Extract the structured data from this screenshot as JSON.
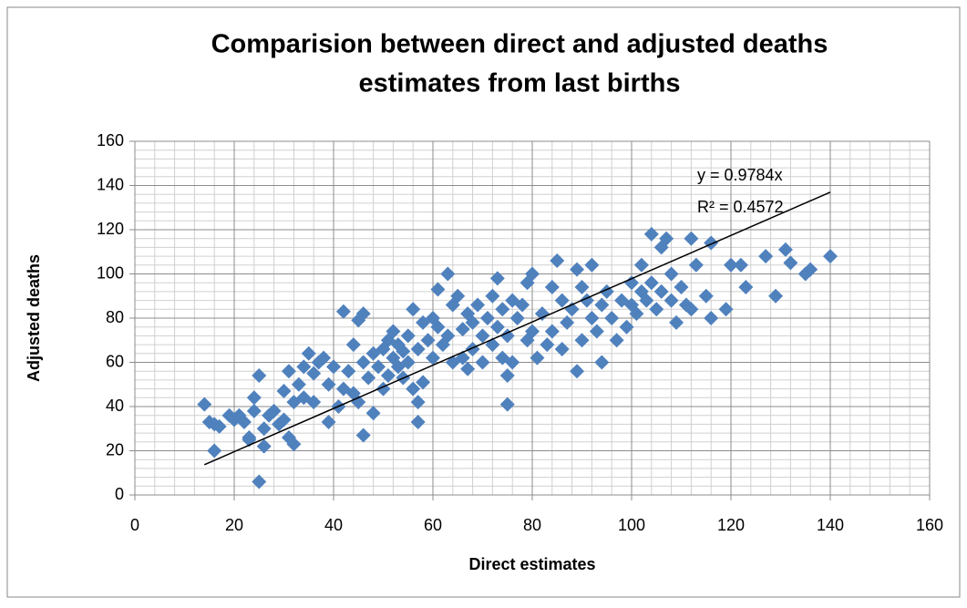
{
  "chart_data": {
    "type": "scatter",
    "title": [
      "Comparision between direct and adjusted deaths",
      "estimates from last births"
    ],
    "x_label": "Direct estimates",
    "y_label": "Adjusted deaths",
    "xlim": [
      0,
      160
    ],
    "xticks": [
      0,
      20,
      40,
      60,
      80,
      100,
      120,
      140,
      160
    ],
    "ylim": [
      0,
      160
    ],
    "yticks": [
      0,
      20,
      40,
      60,
      80,
      100,
      120,
      140,
      160
    ],
    "grid": true,
    "minor_grid_divisions": 5,
    "marker": "diamond",
    "series": [
      {
        "color": "#4f81bd",
        "x": [
          14,
          15,
          16,
          16,
          17,
          19,
          20,
          21,
          22,
          23,
          23,
          24,
          24,
          25,
          25,
          26,
          26,
          27,
          28,
          29,
          30,
          30,
          31,
          31,
          32,
          32,
          33,
          34,
          34,
          35,
          36,
          36,
          37,
          38,
          39,
          39,
          40,
          41,
          42,
          42,
          43,
          44,
          44,
          45,
          45,
          46,
          46,
          46,
          47,
          48,
          48,
          49,
          50,
          50,
          51,
          51,
          52,
          52,
          53,
          53,
          54,
          54,
          55,
          55,
          56,
          56,
          57,
          57,
          57,
          58,
          58,
          59,
          60,
          60,
          61,
          61,
          62,
          63,
          63,
          64,
          64,
          65,
          66,
          66,
          67,
          67,
          68,
          68,
          69,
          70,
          70,
          71,
          72,
          72,
          73,
          73,
          74,
          74,
          75,
          75,
          75,
          76,
          76,
          77,
          78,
          79,
          79,
          80,
          80,
          81,
          82,
          83,
          84,
          84,
          85,
          86,
          86,
          87,
          88,
          89,
          89,
          90,
          90,
          91,
          92,
          92,
          93,
          94,
          94,
          95,
          96,
          97,
          98,
          99,
          100,
          100,
          101,
          102,
          102,
          103,
          104,
          104,
          105,
          106,
          106,
          107,
          108,
          108,
          109,
          110,
          111,
          112,
          112,
          113,
          115,
          116,
          116,
          119,
          120,
          122,
          123,
          127,
          129,
          131,
          132,
          135,
          136,
          140
        ],
        "y": [
          41,
          33,
          20,
          32,
          31,
          36,
          34,
          36,
          33,
          26,
          25,
          38,
          44,
          6,
          54,
          22,
          30,
          36,
          38,
          32,
          34,
          47,
          56,
          26,
          23,
          42,
          50,
          44,
          58,
          64,
          55,
          42,
          60,
          62,
          33,
          50,
          58,
          40,
          48,
          83,
          56,
          68,
          46,
          79,
          42,
          82,
          27,
          60,
          53,
          37,
          64,
          58,
          48,
          66,
          54,
          70,
          62,
          74,
          58,
          68,
          65,
          53,
          72,
          60,
          84,
          48,
          33,
          42,
          66,
          78,
          51,
          70,
          62,
          80,
          93,
          76,
          68,
          100,
          72,
          60,
          86,
          90,
          75,
          62,
          57,
          82,
          78,
          66,
          86,
          72,
          60,
          80,
          68,
          90,
          98,
          76,
          84,
          62,
          41,
          54,
          72,
          88,
          60,
          80,
          86,
          70,
          96,
          100,
          74,
          62,
          82,
          68,
          94,
          74,
          106,
          66,
          88,
          78,
          84,
          56,
          102,
          70,
          94,
          88,
          104,
          80,
          74,
          60,
          86,
          92,
          80,
          70,
          88,
          76,
          96,
          86,
          82,
          104,
          92,
          88,
          118,
          96,
          84,
          112,
          92,
          116,
          88,
          100,
          78,
          94,
          86,
          116,
          84,
          104,
          90,
          80,
          114,
          84,
          104,
          104,
          94,
          108,
          90,
          111,
          105,
          100,
          102,
          108
        ]
      }
    ],
    "trendline": {
      "slope": 0.9784,
      "x_range": [
        14,
        140
      ],
      "equation": "y = 0.9784x",
      "r_squared": "R² = 0.4572",
      "color": "#000000"
    }
  }
}
